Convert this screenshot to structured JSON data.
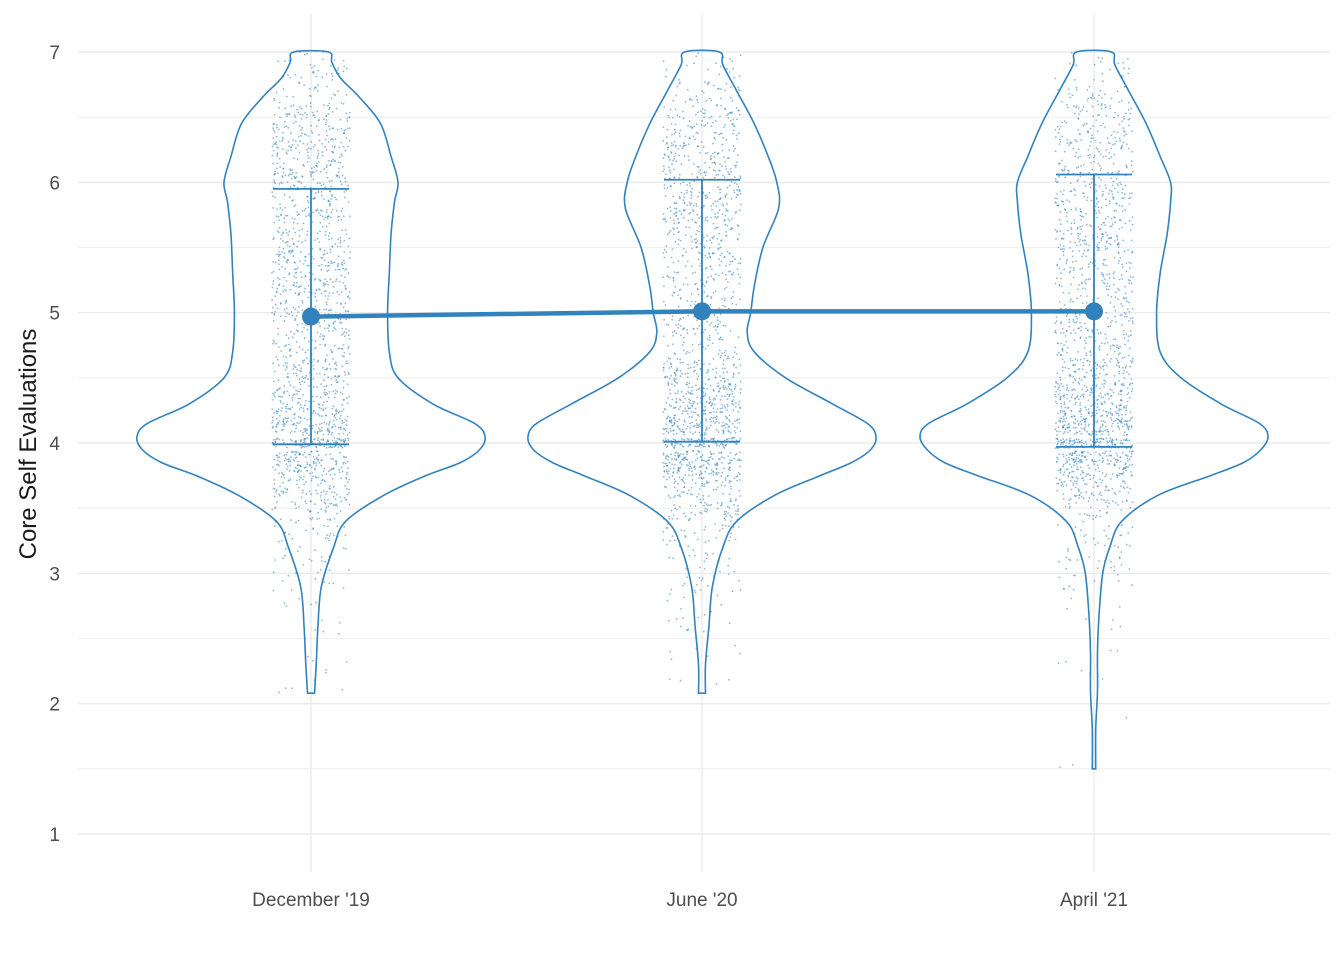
{
  "chart_data": {
    "type": "violin",
    "ylabel": "Core Self Evaluations",
    "ylim": [
      0.7,
      7.0
    ],
    "yticks": [
      1,
      2,
      3,
      4,
      5,
      6,
      7
    ],
    "categories": [
      "December '19",
      "June '20",
      "April '21"
    ],
    "grid": true,
    "color": "#3182bd",
    "groups": [
      {
        "name": "December '19",
        "mean": 4.97,
        "ci": [
          3.99,
          5.95
        ],
        "range": [
          2.08,
          7.0
        ],
        "density": [
          [
            2.08,
            0.02
          ],
          [
            2.3,
            0.03
          ],
          [
            2.6,
            0.04
          ],
          [
            2.9,
            0.06
          ],
          [
            3.2,
            0.13
          ],
          [
            3.4,
            0.2
          ],
          [
            3.6,
            0.42
          ],
          [
            3.75,
            0.66
          ],
          [
            3.85,
            0.86
          ],
          [
            3.95,
            0.97
          ],
          [
            4.05,
            1.0
          ],
          [
            4.15,
            0.94
          ],
          [
            4.3,
            0.7
          ],
          [
            4.5,
            0.5
          ],
          [
            4.7,
            0.45
          ],
          [
            5.0,
            0.44
          ],
          [
            5.3,
            0.45
          ],
          [
            5.6,
            0.46
          ],
          [
            5.85,
            0.48
          ],
          [
            6.0,
            0.5
          ],
          [
            6.2,
            0.46
          ],
          [
            6.45,
            0.4
          ],
          [
            6.65,
            0.28
          ],
          [
            6.8,
            0.17
          ],
          [
            6.92,
            0.12
          ],
          [
            7.0,
            0.1
          ]
        ]
      },
      {
        "name": "June '20",
        "mean": 5.01,
        "ci": [
          4.01,
          6.02
        ],
        "range": [
          2.08,
          7.0
        ],
        "density": [
          [
            2.08,
            0.02
          ],
          [
            2.3,
            0.02
          ],
          [
            2.6,
            0.04
          ],
          [
            2.9,
            0.06
          ],
          [
            3.2,
            0.12
          ],
          [
            3.4,
            0.2
          ],
          [
            3.6,
            0.42
          ],
          [
            3.75,
            0.68
          ],
          [
            3.85,
            0.86
          ],
          [
            3.95,
            0.97
          ],
          [
            4.05,
            1.0
          ],
          [
            4.15,
            0.95
          ],
          [
            4.3,
            0.75
          ],
          [
            4.5,
            0.48
          ],
          [
            4.7,
            0.3
          ],
          [
            4.85,
            0.26
          ],
          [
            5.0,
            0.28
          ],
          [
            5.2,
            0.3
          ],
          [
            5.5,
            0.35
          ],
          [
            5.8,
            0.44
          ],
          [
            6.0,
            0.43
          ],
          [
            6.2,
            0.38
          ],
          [
            6.45,
            0.3
          ],
          [
            6.7,
            0.2
          ],
          [
            6.9,
            0.12
          ],
          [
            7.0,
            0.1
          ]
        ]
      },
      {
        "name": "April '21",
        "mean": 5.01,
        "ci": [
          3.97,
          6.06
        ],
        "range": [
          1.5,
          7.0
        ],
        "density": [
          [
            1.5,
            0.01
          ],
          [
            1.8,
            0.01
          ],
          [
            2.1,
            0.02
          ],
          [
            2.4,
            0.02
          ],
          [
            2.7,
            0.03
          ],
          [
            3.0,
            0.05
          ],
          [
            3.2,
            0.09
          ],
          [
            3.4,
            0.16
          ],
          [
            3.6,
            0.37
          ],
          [
            3.75,
            0.67
          ],
          [
            3.85,
            0.86
          ],
          [
            3.95,
            0.96
          ],
          [
            4.05,
            1.0
          ],
          [
            4.15,
            0.95
          ],
          [
            4.3,
            0.73
          ],
          [
            4.5,
            0.5
          ],
          [
            4.7,
            0.38
          ],
          [
            5.0,
            0.36
          ],
          [
            5.3,
            0.38
          ],
          [
            5.6,
            0.42
          ],
          [
            5.85,
            0.44
          ],
          [
            6.0,
            0.44
          ],
          [
            6.2,
            0.38
          ],
          [
            6.45,
            0.3
          ],
          [
            6.7,
            0.2
          ],
          [
            6.9,
            0.12
          ],
          [
            7.0,
            0.1
          ]
        ]
      }
    ]
  }
}
